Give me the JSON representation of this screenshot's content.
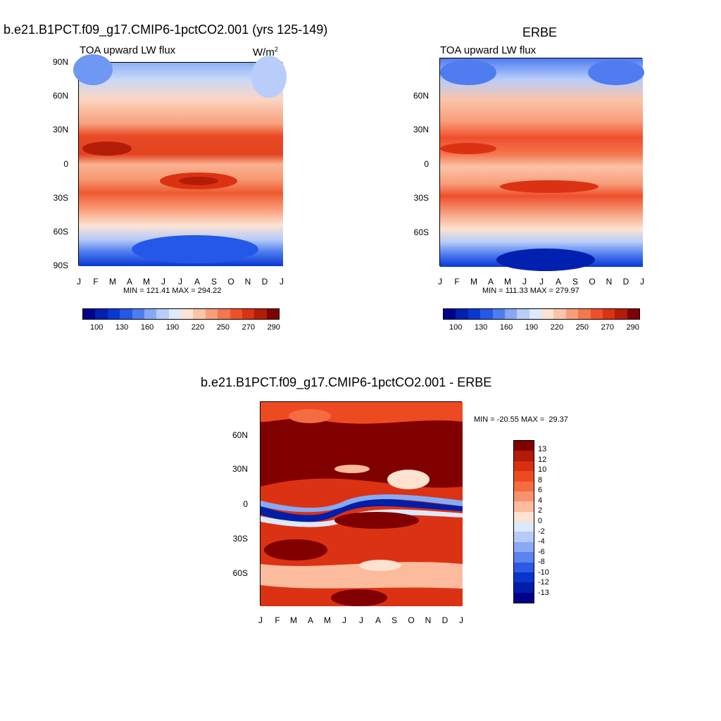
{
  "chart_data": [
    {
      "type": "heatmap",
      "title": "b.e21.B1PCT.f09_g17.CMIP6-1pctCO2.001 (yrs 125-149)",
      "subtitle": "TOA upward LW flux",
      "units": "W/m",
      "units_exp": "2",
      "x_ticks": [
        "J",
        "F",
        "M",
        "A",
        "M",
        "J",
        "J",
        "A",
        "S",
        "O",
        "N",
        "D",
        "J"
      ],
      "y_ticks": [
        "90N",
        "60N",
        "30N",
        "0",
        "30S",
        "60S",
        "90S"
      ],
      "stats": "MIN = 121.41 MAX = 294.22",
      "min": 121.41,
      "max": 294.22,
      "colorbar_labels": [
        "100",
        "130",
        "160",
        "190",
        "220",
        "250",
        "270",
        "290"
      ]
    },
    {
      "type": "heatmap",
      "title": "ERBE",
      "subtitle": "TOA upward LW flux",
      "x_ticks": [
        "J",
        "F",
        "M",
        "A",
        "M",
        "J",
        "J",
        "A",
        "S",
        "O",
        "N",
        "D",
        "J"
      ],
      "y_ticks": [
        "60N",
        "30N",
        "0",
        "30S",
        "60S"
      ],
      "stats": "MIN = 111.33 MAX = 279.97",
      "min": 111.33,
      "max": 279.97,
      "colorbar_labels": [
        "100",
        "130",
        "160",
        "190",
        "220",
        "250",
        "270",
        "290"
      ]
    },
    {
      "type": "heatmap",
      "title": "b.e21.B1PCT.f09_g17.CMIP6-1pctCO2.001 - ERBE",
      "x_ticks": [
        "J",
        "F",
        "M",
        "A",
        "M",
        "J",
        "J",
        "A",
        "S",
        "O",
        "N",
        "D",
        "J"
      ],
      "y_ticks": [
        "60N",
        "30N",
        "0",
        "30S",
        "60S"
      ],
      "stats": "MIN = -20.55 MAX =  29.37",
      "min": -20.55,
      "max": 29.37,
      "colorbar_labels": [
        "13",
        "12",
        "10",
        "8",
        "6",
        "4",
        "2",
        "0",
        "-2",
        "-4",
        "-6",
        "-8",
        "-10",
        "-12",
        "-13"
      ]
    }
  ],
  "colors": {
    "flux_scale": [
      "#00008b",
      "#0020b0",
      "#0837d4",
      "#2458e8",
      "#4f7cf0",
      "#86a8f5",
      "#b8cdfa",
      "#ddeafc",
      "#fde3d3",
      "#fbc3a8",
      "#f89e7b",
      "#f4774f",
      "#ef4f2b",
      "#dc3214",
      "#b51c08",
      "#7f0000"
    ],
    "diff_scale": [
      "#800000",
      "#b31a08",
      "#d82e12",
      "#ee4a22",
      "#f56c42",
      "#f8926c",
      "#fbbb9c",
      "#fde2d0",
      "#dce9fb",
      "#b4cbf8",
      "#88aaf4",
      "#5b84ef",
      "#2f58e4",
      "#0a34cc",
      "#001ea8",
      "#00008b"
    ]
  }
}
